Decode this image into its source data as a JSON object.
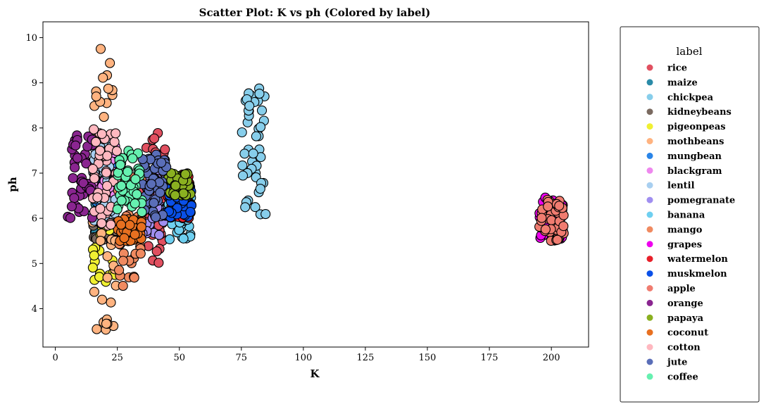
{
  "chart_data": {
    "type": "scatter",
    "title": "Scatter Plot: K vs ph (Colored by label)",
    "xlabel": "K",
    "ylabel": "ph",
    "xlim": [
      -5,
      215
    ],
    "ylim": [
      3.15,
      10.35
    ],
    "xticks": [
      0,
      25,
      50,
      75,
      100,
      125,
      150,
      175,
      200
    ],
    "yticks": [
      4,
      5,
      6,
      7,
      8,
      9,
      10
    ],
    "grid": false,
    "legend": {
      "title": "label",
      "placement": "outside-right"
    },
    "series": [
      {
        "name": "rice",
        "color": "#e15060",
        "k": [
          35,
          45
        ],
        "ph": [
          5.0,
          7.9
        ]
      },
      {
        "name": "maize",
        "color": "#2a8ba8",
        "k": [
          15,
          25
        ],
        "ph": [
          5.5,
          7.0
        ]
      },
      {
        "name": "chickpea",
        "color": "#87ceeb",
        "k": [
          75,
          85
        ],
        "ph": [
          6.0,
          8.9
        ]
      },
      {
        "name": "kidneybeans",
        "color": "#7a6a60",
        "k": [
          15,
          25
        ],
        "ph": [
          5.5,
          6.0
        ]
      },
      {
        "name": "pigeonpeas",
        "color": "#f0f032",
        "k": [
          15,
          25
        ],
        "ph": [
          4.5,
          7.5
        ]
      },
      {
        "name": "mothbeans",
        "color": "#ffb380",
        "k": [
          15,
          25
        ],
        "ph": [
          3.5,
          9.9
        ]
      },
      {
        "name": "mungbean",
        "color": "#2a85e8",
        "k": [
          15,
          25
        ],
        "ph": [
          6.2,
          7.2
        ]
      },
      {
        "name": "blackgram",
        "color": "#ee88ee",
        "k": [
          15,
          25
        ],
        "ph": [
          6.5,
          7.8
        ]
      },
      {
        "name": "lentil",
        "color": "#a8cff0",
        "k": [
          15,
          25
        ],
        "ph": [
          5.9,
          7.8
        ]
      },
      {
        "name": "pomegranate",
        "color": "#a08ef0",
        "k": [
          35,
          45
        ],
        "ph": [
          5.6,
          7.2
        ]
      },
      {
        "name": "banana",
        "color": "#6ecff0",
        "k": [
          45,
          55
        ],
        "ph": [
          5.5,
          6.5
        ]
      },
      {
        "name": "mango",
        "color": "#f08a60",
        "k": [
          25,
          35
        ],
        "ph": [
          4.5,
          7.0
        ]
      },
      {
        "name": "grapes",
        "color": "#ee00ee",
        "k": [
          195,
          205
        ],
        "ph": [
          5.5,
          6.5
        ]
      },
      {
        "name": "watermelon",
        "color": "#e8202a",
        "k": [
          45,
          55
        ],
        "ph": [
          6.0,
          7.0
        ]
      },
      {
        "name": "muskmelon",
        "color": "#0a50e8",
        "k": [
          45,
          55
        ],
        "ph": [
          6.0,
          6.8
        ]
      },
      {
        "name": "apple",
        "color": "#f07c70",
        "k": [
          195,
          205
        ],
        "ph": [
          5.5,
          6.5
        ]
      },
      {
        "name": "orange",
        "color": "#8a2590",
        "k": [
          5,
          15
        ],
        "ph": [
          6.0,
          8.0
        ]
      },
      {
        "name": "papaya",
        "color": "#8ab020",
        "k": [
          45,
          55
        ],
        "ph": [
          6.5,
          7.0
        ]
      },
      {
        "name": "coconut",
        "color": "#e87020",
        "k": [
          25,
          35
        ],
        "ph": [
          5.5,
          6.0
        ]
      },
      {
        "name": "cotton",
        "color": "#ffb8c0",
        "k": [
          15,
          25
        ],
        "ph": [
          5.8,
          8.0
        ]
      },
      {
        "name": "jute",
        "color": "#5a6eb8",
        "k": [
          35,
          45
        ],
        "ph": [
          6.0,
          7.5
        ]
      },
      {
        "name": "coffee",
        "color": "#66f0b0",
        "k": [
          25,
          35
        ],
        "ph": [
          6.0,
          7.5
        ]
      }
    ]
  }
}
